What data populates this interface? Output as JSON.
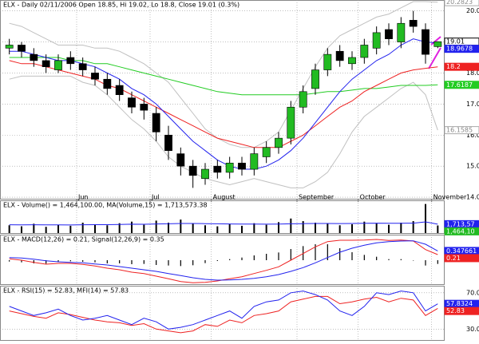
{
  "chart_data": {
    "type": "stock",
    "title": "ELX - Daily 02/11/2006 Open 18.85, Hi 19.02, Lo 18.8, Close 19.01 (0.3%)",
    "categories": [
      null,
      null,
      null,
      null,
      null,
      null,
      "Jun",
      null,
      null,
      null,
      null,
      null,
      "Jul",
      null,
      null,
      null,
      null,
      "August",
      null,
      null,
      null,
      null,
      null,
      null,
      "September",
      null,
      null,
      null,
      null,
      "October",
      null,
      null,
      null,
      null,
      null,
      "November"
    ],
    "open": [
      18.8,
      18.9,
      18.6,
      18.4,
      18.1,
      18.5,
      18.3,
      18.0,
      17.8,
      17.6,
      17.2,
      17.0,
      16.7,
      16.0,
      15.4,
      15.0,
      14.6,
      15.0,
      14.8,
      15.1,
      14.9,
      15.3,
      15.6,
      15.9,
      16.9,
      17.5,
      18.1,
      18.7,
      18.3,
      18.5,
      18.8,
      19.4,
      19.0,
      19.7,
      19.4,
      18.85
    ],
    "high": [
      19.1,
      19.0,
      18.8,
      18.6,
      18.6,
      18.7,
      18.5,
      18.2,
      18.0,
      17.8,
      17.4,
      17.2,
      16.9,
      16.3,
      15.6,
      15.2,
      15.1,
      15.2,
      15.3,
      15.3,
      15.6,
      15.8,
      16.1,
      17.1,
      17.6,
      18.3,
      18.8,
      18.9,
      18.7,
      19.1,
      19.5,
      19.6,
      19.8,
      20.0,
      19.6,
      19.02
    ],
    "low": [
      18.6,
      18.5,
      18.2,
      18.0,
      18.0,
      18.1,
      17.9,
      17.6,
      17.3,
      17.1,
      16.7,
      16.5,
      15.8,
      15.2,
      14.7,
      14.3,
      14.4,
      14.6,
      14.6,
      14.7,
      14.7,
      15.1,
      15.4,
      15.7,
      16.7,
      17.3,
      17.9,
      18.2,
      18.1,
      18.3,
      18.6,
      18.9,
      18.8,
      19.3,
      18.3,
      18.8
    ],
    "close": [
      18.9,
      18.7,
      18.4,
      18.2,
      18.4,
      18.3,
      18.1,
      17.8,
      17.5,
      17.3,
      16.9,
      16.8,
      16.1,
      15.5,
      15.0,
      14.7,
      14.9,
      14.8,
      15.1,
      14.9,
      15.4,
      15.6,
      15.9,
      16.9,
      17.4,
      18.1,
      18.6,
      18.4,
      18.5,
      18.9,
      19.3,
      19.1,
      19.6,
      19.5,
      18.6,
      19.01
    ],
    "close_flag": "19.01",
    "up_color": "#22bb22",
    "down_color": "#000000",
    "ylim": [
      13.95,
      20.3
    ],
    "yticks": [
      {
        "value": 14,
        "label": "14.0"
      },
      {
        "value": 15,
        "label": "15.0"
      },
      {
        "value": 16,
        "label": "16.0"
      },
      {
        "value": 17,
        "label": "17.0"
      },
      {
        "value": 18,
        "label": "18.0"
      },
      {
        "value": 19,
        "label": "19.0"
      },
      {
        "value": 20,
        "label": "20.0"
      }
    ],
    "grid": true,
    "overlays": [
      {
        "color": "#c0c0c0",
        "values": [
          19.6,
          19.5,
          19.3,
          19.1,
          18.9,
          18.9,
          18.9,
          18.8,
          18.8,
          18.7,
          18.5,
          18.3,
          18.0,
          17.7,
          17.2,
          16.7,
          16.2,
          15.9,
          15.7,
          15.6,
          15.6,
          15.8,
          16.1,
          16.8,
          17.5,
          18.2,
          18.8,
          19.2,
          19.4,
          19.6,
          19.8,
          19.9,
          20.1,
          20.3,
          20.3,
          20.2823
        ],
        "flag": "20.2823"
      },
      {
        "color": "#c0c0c0",
        "values": [
          17.8,
          17.9,
          17.9,
          17.9,
          17.9,
          17.9,
          17.7,
          17.6,
          17.3,
          16.9,
          16.5,
          16.2,
          15.8,
          15.3,
          15.0,
          14.8,
          14.6,
          14.5,
          14.4,
          14.5,
          14.6,
          14.5,
          14.4,
          14.3,
          14.3,
          14.5,
          14.8,
          15.4,
          16.1,
          16.6,
          16.9,
          17.2,
          17.5,
          17.7,
          17.3,
          16.1585
        ],
        "flag": "16.1585"
      },
      {
        "color": "#22cc22",
        "values": [
          18.5,
          18.5,
          18.5,
          18.5,
          18.5,
          18.4,
          18.4,
          18.3,
          18.3,
          18.2,
          18.1,
          18.0,
          17.9,
          17.8,
          17.7,
          17.6,
          17.5,
          17.4,
          17.35,
          17.3,
          17.3,
          17.3,
          17.3,
          17.3,
          17.3,
          17.35,
          17.4,
          17.4,
          17.45,
          17.5,
          17.5,
          17.55,
          17.6,
          17.6,
          17.6,
          17.6187
        ],
        "flag": "17.6187"
      },
      {
        "color": "#ee2222",
        "values": [
          18.4,
          18.3,
          18.3,
          18.2,
          18.1,
          18.0,
          17.9,
          17.8,
          17.6,
          17.5,
          17.3,
          17.1,
          16.9,
          16.7,
          16.5,
          16.3,
          16.1,
          15.9,
          15.8,
          15.7,
          15.6,
          15.6,
          15.6,
          15.8,
          16.0,
          16.3,
          16.6,
          16.9,
          17.1,
          17.4,
          17.6,
          17.8,
          18.0,
          18.1,
          18.15,
          18.2
        ],
        "flag": "18.2"
      },
      {
        "color": "#2222ee",
        "values": [
          18.7,
          18.7,
          18.6,
          18.5,
          18.4,
          18.4,
          18.3,
          18.2,
          18.0,
          17.8,
          17.5,
          17.3,
          17.0,
          16.6,
          16.2,
          15.8,
          15.5,
          15.2,
          15.0,
          14.9,
          14.9,
          15.0,
          15.2,
          15.5,
          15.9,
          16.4,
          16.9,
          17.4,
          17.8,
          18.1,
          18.4,
          18.6,
          18.9,
          19.1,
          19.0,
          18.9678
        ],
        "flag": "18.9678"
      }
    ],
    "panels": [
      {
        "label": "ELX - Volume() = 1,464,100.00, MA(Volume,15) = 1,713,573.38",
        "ylim": [
          0,
          6000000
        ],
        "series": [
          {
            "kind": "bar",
            "color": "#000000",
            "flag_color": "#22bb22",
            "values": [
              1500000,
              1300000,
              1800000,
              1200000,
              1600000,
              1400000,
              2000000,
              1700000,
              1500000,
              1900000,
              2200000,
              1600000,
              2400000,
              2000000,
              2600000,
              1800000,
              1500000,
              1300000,
              1700000,
              1400000,
              1900000,
              1600000,
              2100000,
              2800000,
              2300000,
              2000000,
              1800000,
              1500000,
              1700000,
              2200000,
              1900000,
              1600000,
              2000000,
              2300000,
              5600000,
              1464100
            ],
            "flag": "1,464,10"
          },
          {
            "kind": "line",
            "color": "#2222ee",
            "values": [
              1600000,
              1580000,
              1600000,
              1570000,
              1580000,
              1560000,
              1600000,
              1620000,
              1610000,
              1650000,
              1700000,
              1690000,
              1750000,
              1780000,
              1840000,
              1850000,
              1820000,
              1780000,
              1760000,
              1720000,
              1730000,
              1710000,
              1720000,
              1790000,
              1820000,
              1840000,
              1850000,
              1830000,
              1840000,
              1880000,
              1900000,
              1880000,
              1890000,
              1910000,
              2150000,
              1713573.38
            ],
            "flag": "1,713,57"
          }
        ]
      },
      {
        "label": "ELX - MACD(12,26) = 0.21, Signal(12,26,9) = 0.35",
        "ylim": [
          -0.9,
          0.9
        ],
        "series": [
          {
            "kind": "bar",
            "color": "#000000",
            "values": [
              -0.05,
              -0.08,
              -0.12,
              -0.13,
              -0.06,
              -0.04,
              -0.06,
              -0.08,
              -0.12,
              -0.12,
              -0.15,
              -0.14,
              -0.18,
              -0.2,
              -0.22,
              -0.19,
              -0.11,
              -0.03,
              0.04,
              0.1,
              0.18,
              0.24,
              0.29,
              0.42,
              0.53,
              0.6,
              0.6,
              0.45,
              0.3,
              0.2,
              0.13,
              0.04,
              0.04,
              -0.01,
              -0.2,
              -0.14
            ]
          },
          {
            "kind": "line",
            "color": "#ee2222",
            "values": [
              0.05,
              0.0,
              -0.08,
              -0.15,
              -0.12,
              -0.12,
              -0.16,
              -0.22,
              -0.3,
              -0.36,
              -0.45,
              -0.5,
              -0.6,
              -0.7,
              -0.8,
              -0.85,
              -0.83,
              -0.78,
              -0.7,
              -0.62,
              -0.5,
              -0.38,
              -0.25,
              0.0,
              0.25,
              0.5,
              0.7,
              0.75,
              0.75,
              0.76,
              0.78,
              0.74,
              0.76,
              0.72,
              0.4,
              0.21
            ],
            "flag": "0.21"
          },
          {
            "kind": "line",
            "color": "#2222ee",
            "values": [
              0.1,
              0.08,
              0.04,
              -0.02,
              -0.06,
              -0.08,
              -0.1,
              -0.14,
              -0.18,
              -0.24,
              -0.3,
              -0.36,
              -0.42,
              -0.5,
              -0.58,
              -0.66,
              -0.72,
              -0.75,
              -0.74,
              -0.72,
              -0.68,
              -0.62,
              -0.54,
              -0.42,
              -0.28,
              -0.1,
              0.1,
              0.3,
              0.45,
              0.56,
              0.65,
              0.7,
              0.72,
              0.73,
              0.6,
              0.347661
            ],
            "flag": "0.347661"
          }
        ]
      },
      {
        "label": "ELX - RSI(15) = 52.83, MFI(14) = 57.83",
        "ylim": [
          18,
          76
        ],
        "yticks": [
          {
            "value": 70,
            "label": "70.0"
          },
          {
            "value": 30,
            "label": "30.0"
          }
        ],
        "series": [
          {
            "kind": "line",
            "color": "#ee2222",
            "values": [
              50,
              47,
              44,
              42,
              48,
              46,
              43,
              40,
              38,
              37,
              34,
              36,
              30,
              28,
              26,
              28,
              35,
              33,
              40,
              37,
              45,
              47,
              50,
              60,
              63,
              66,
              66,
              58,
              60,
              63,
              65,
              60,
              64,
              62,
              45,
              52.83
            ],
            "flag": "52.83"
          },
          {
            "kind": "line",
            "color": "#2222ee",
            "values": [
              55,
              50,
              45,
              48,
              52,
              45,
              40,
              42,
              45,
              40,
              35,
              42,
              38,
              30,
              32,
              35,
              40,
              45,
              50,
              42,
              55,
              60,
              62,
              70,
              72,
              68,
              62,
              50,
              45,
              55,
              70,
              68,
              72,
              70,
              50,
              57.8324
            ],
            "flag": "57.8324"
          }
        ]
      }
    ]
  }
}
